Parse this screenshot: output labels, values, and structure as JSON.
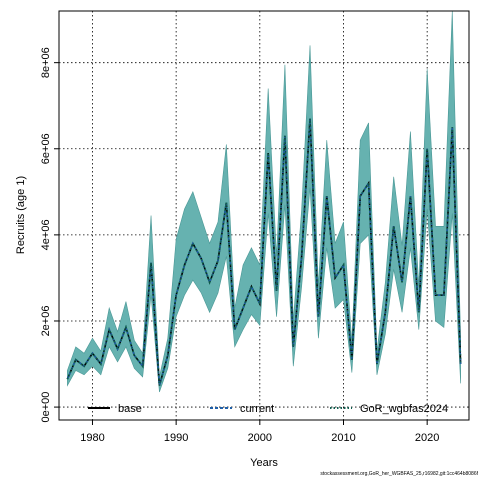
{
  "chart_data": {
    "type": "line",
    "title": "",
    "xlabel": "Years",
    "ylabel": "Recruits (age 1)",
    "xlim": [
      1976,
      2025
    ],
    "ylim": [
      -300000,
      9200000
    ],
    "x_ticks": [
      1980,
      1990,
      2000,
      2010,
      2020
    ],
    "x_tick_labels": [
      "1980",
      "1990",
      "2000",
      "2010",
      "2020"
    ],
    "y_ticks": [
      0,
      2000000,
      4000000,
      6000000,
      8000000
    ],
    "y_tick_labels": [
      "0e+00",
      "2e+06",
      "4e+06",
      "6e+06",
      "8e+06"
    ],
    "grid": true,
    "legend_position": "bottom",
    "colors": {
      "band": "#66b2b0",
      "band_edge": "#4a9896",
      "base": "#000000",
      "current": "#1f5fa8",
      "gor": "#0f5e4e"
    },
    "legend": [
      {
        "name": "base",
        "style": "solid"
      },
      {
        "name": "current",
        "style": "dashed"
      },
      {
        "name": "GoR_wgbfas2024",
        "style": "dotted"
      }
    ],
    "x": [
      1977,
      1978,
      1979,
      1980,
      1981,
      1982,
      1983,
      1984,
      1985,
      1986,
      1987,
      1988,
      1989,
      1990,
      1991,
      1992,
      1993,
      1994,
      1995,
      1996,
      1997,
      1998,
      1999,
      2000,
      2001,
      2002,
      2003,
      2004,
      2005,
      2006,
      2007,
      2008,
      2009,
      2010,
      2011,
      2012,
      2013,
      2014,
      2015,
      2016,
      2017,
      2018,
      2019,
      2020,
      2021,
      2022,
      2023,
      2024
    ],
    "series": [
      {
        "name": "GoR_wgbfas2024",
        "values": [
          650000,
          1100000,
          950000,
          1250000,
          1000000,
          1800000,
          1350000,
          1850000,
          1200000,
          950000,
          3350000,
          500000,
          1200000,
          2600000,
          3300000,
          3800000,
          3450000,
          2900000,
          3400000,
          4750000,
          1800000,
          2300000,
          2800000,
          2400000,
          5900000,
          2700000,
          6300000,
          1400000,
          3500000,
          6700000,
          2100000,
          4900000,
          3000000,
          3300000,
          1100000,
          4900000,
          5200000,
          1000000,
          2200000,
          4200000,
          2900000,
          4900000,
          2200000,
          6000000,
          2600000,
          2600000,
          6500000,
          1000000
        ]
      },
      {
        "name": "GoR_wgbfas2024_lower",
        "values": [
          500000,
          850000,
          750000,
          950000,
          750000,
          1400000,
          1050000,
          1400000,
          900000,
          700000,
          2600000,
          350000,
          900000,
          2100000,
          2600000,
          2950000,
          2650000,
          2200000,
          2650000,
          3500000,
          1400000,
          1800000,
          2150000,
          1900000,
          4500000,
          2100000,
          4700000,
          950000,
          2800000,
          5100000,
          1600000,
          3700000,
          2300000,
          2500000,
          800000,
          3800000,
          4000000,
          750000,
          1700000,
          3200000,
          2200000,
          3700000,
          1800000,
          4600000,
          2000000,
          1850000,
          4500000,
          550000
        ]
      },
      {
        "name": "GoR_wgbfas2024_upper",
        "values": [
          850000,
          1400000,
          1250000,
          1600000,
          1300000,
          2300000,
          1750000,
          2450000,
          1550000,
          1250000,
          4450000,
          700000,
          1600000,
          3900000,
          4600000,
          5000000,
          4400000,
          3800000,
          4300000,
          6100000,
          2300000,
          3300000,
          3700000,
          3300000,
          7400000,
          3500000,
          7950000,
          2000000,
          4600000,
          8400000,
          2800000,
          6200000,
          3800000,
          4300000,
          1500000,
          6200000,
          6600000,
          1300000,
          2900000,
          5350000,
          3750000,
          6400000,
          2800000,
          7850000,
          4200000,
          4200000,
          9200000,
          1600000
        ]
      }
    ]
  },
  "footer_text": "stockassessment.org,GoR_her_WGBFAS_25,r16982,git:1cc464b8086f"
}
